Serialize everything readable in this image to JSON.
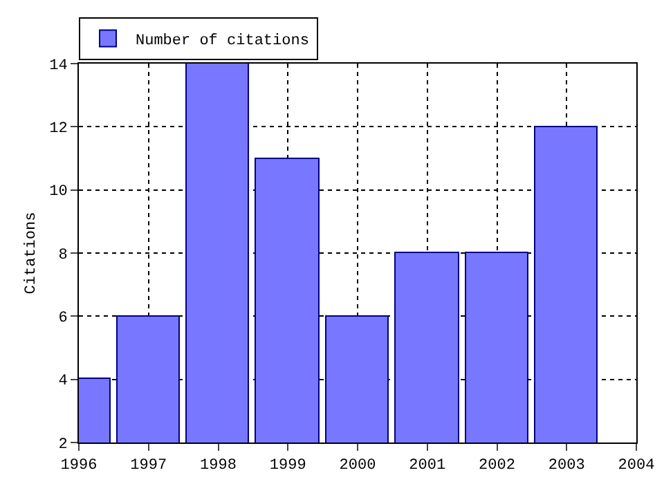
{
  "chart_data": {
    "type": "bar",
    "ylabel": "Citations",
    "x": [
      1996,
      1997,
      1998,
      1999,
      2000,
      2001,
      2002,
      2003
    ],
    "series": [
      {
        "name": "Number of citations",
        "color": "#7777ff",
        "values": [
          4,
          6,
          14,
          11,
          6,
          8,
          8,
          12
        ]
      }
    ],
    "xlim": [
      1996,
      2004
    ],
    "xticks": [
      1996,
      1997,
      1998,
      1999,
      2000,
      2001,
      2002,
      2003,
      2004
    ],
    "ylim": [
      2,
      14
    ],
    "yticks": [
      2,
      4,
      6,
      8,
      10,
      12,
      14
    ],
    "grid": true,
    "legend": "top left"
  }
}
